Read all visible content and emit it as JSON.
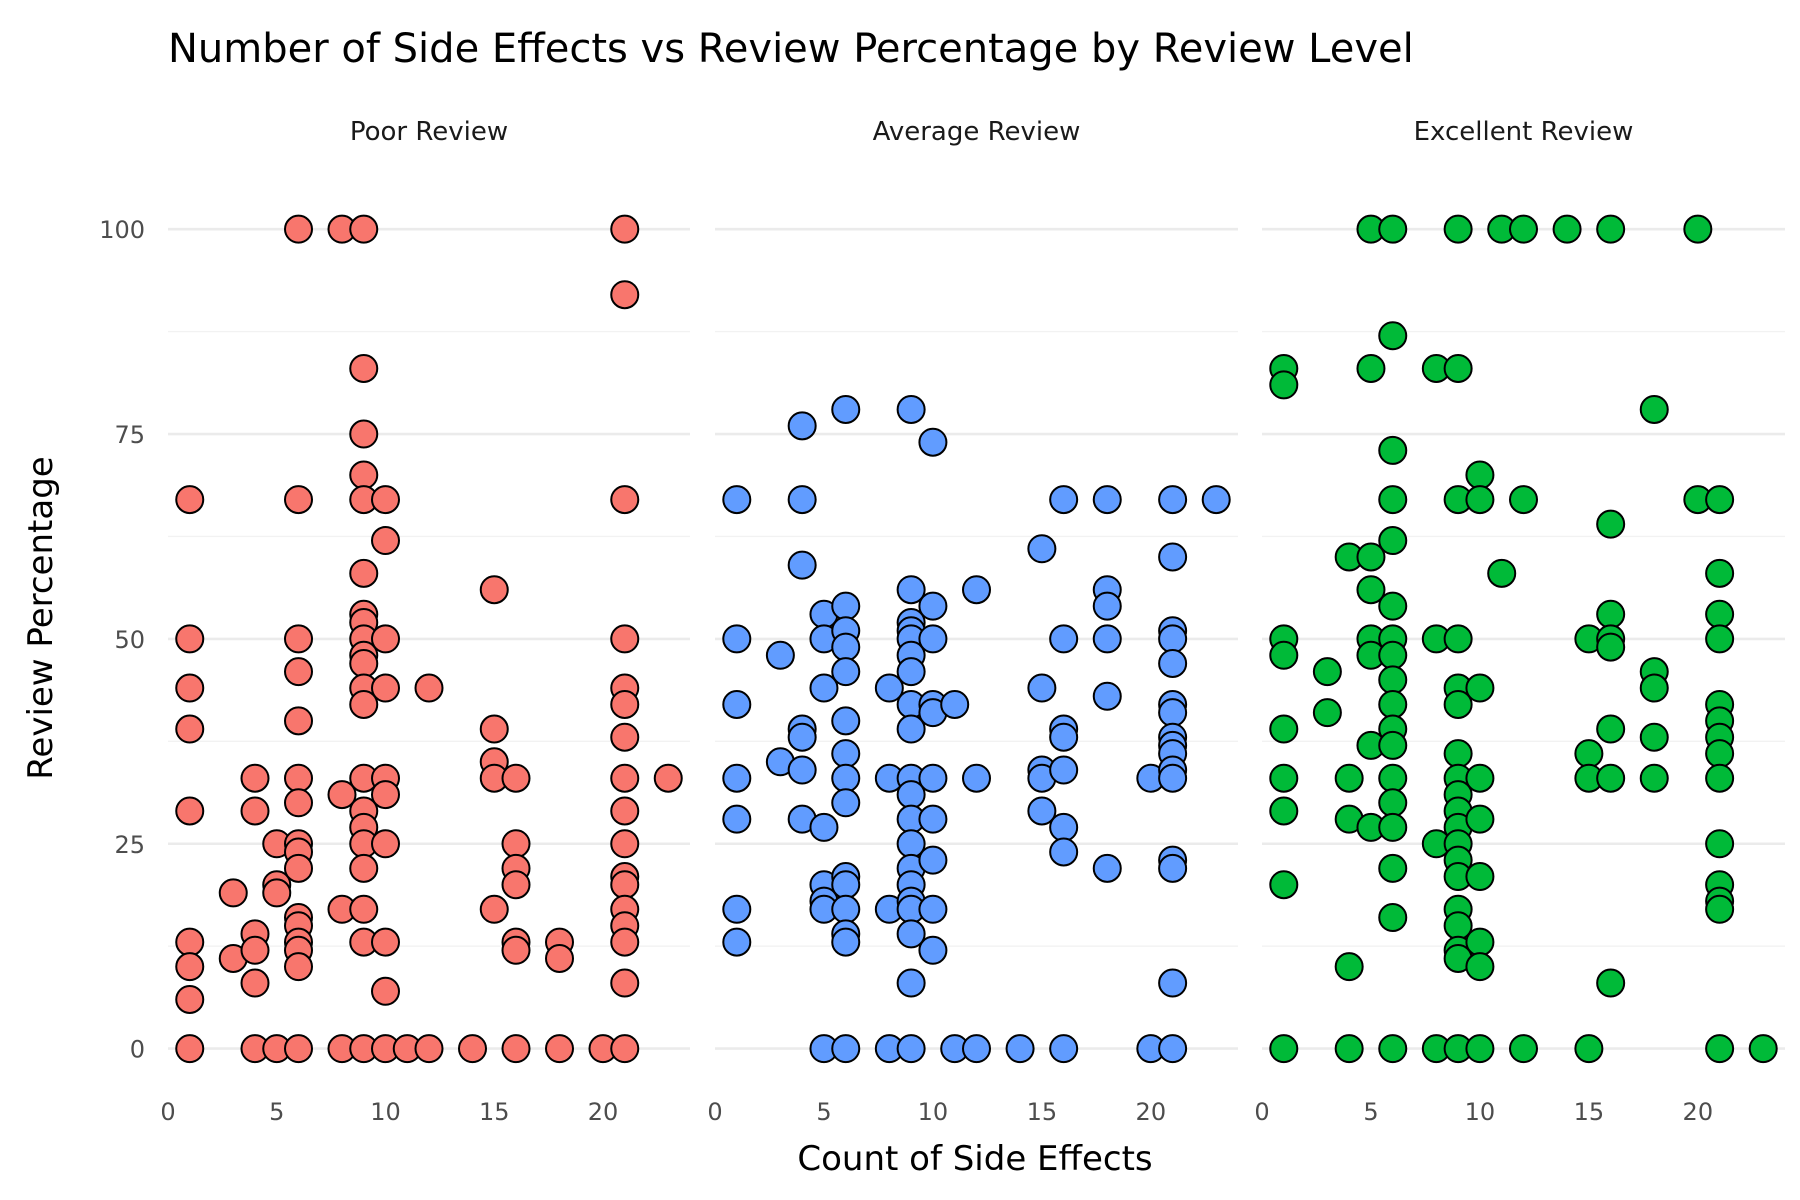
{
  "chart_data": {
    "type": "scatter",
    "title": "Number of Side Effects vs Review Percentage by Review Level",
    "xlabel": "Count of Side Effects",
    "ylabel": "Review Percentage",
    "xlim": [
      0,
      24
    ],
    "ylim": [
      -2,
      106
    ],
    "x_ticks": [
      "0",
      "5",
      "10",
      "15",
      "20"
    ],
    "y_ticks": [
      "0",
      "25",
      "50",
      "75",
      "100"
    ],
    "grid": true,
    "legend": "none",
    "series": [
      {
        "name": "Poor Review",
        "color": "#F8766D",
        "points": [
          [
            1,
            67
          ],
          [
            1,
            50
          ],
          [
            1,
            44
          ],
          [
            1,
            39
          ],
          [
            1,
            29
          ],
          [
            1,
            13
          ],
          [
            1,
            10
          ],
          [
            1,
            6
          ],
          [
            1,
            0
          ],
          [
            3,
            19
          ],
          [
            3,
            11
          ],
          [
            4,
            33
          ],
          [
            4,
            29
          ],
          [
            4,
            14
          ],
          [
            4,
            12
          ],
          [
            4,
            8
          ],
          [
            4,
            0
          ],
          [
            5,
            25
          ],
          [
            5,
            20
          ],
          [
            5,
            19
          ],
          [
            5,
            0
          ],
          [
            6,
            100
          ],
          [
            6,
            67
          ],
          [
            6,
            50
          ],
          [
            6,
            46
          ],
          [
            6,
            40
          ],
          [
            6,
            33
          ],
          [
            6,
            30
          ],
          [
            6,
            25
          ],
          [
            6,
            24
          ],
          [
            6,
            22
          ],
          [
            6,
            16
          ],
          [
            6,
            15
          ],
          [
            6,
            13
          ],
          [
            6,
            12
          ],
          [
            6,
            10
          ],
          [
            6,
            0
          ],
          [
            8,
            100
          ],
          [
            8,
            31
          ],
          [
            8,
            17
          ],
          [
            8,
            0
          ],
          [
            9,
            100
          ],
          [
            9,
            83
          ],
          [
            9,
            75
          ],
          [
            9,
            70
          ],
          [
            9,
            67
          ],
          [
            9,
            58
          ],
          [
            9,
            53
          ],
          [
            9,
            52
          ],
          [
            9,
            50
          ],
          [
            9,
            48
          ],
          [
            9,
            47
          ],
          [
            9,
            44
          ],
          [
            9,
            42
          ],
          [
            9,
            33
          ],
          [
            9,
            29
          ],
          [
            9,
            27
          ],
          [
            9,
            25
          ],
          [
            9,
            22
          ],
          [
            9,
            17
          ],
          [
            9,
            13
          ],
          [
            9,
            0
          ],
          [
            10,
            67
          ],
          [
            10,
            62
          ],
          [
            10,
            50
          ],
          [
            10,
            44
          ],
          [
            10,
            33
          ],
          [
            10,
            31
          ],
          [
            10,
            25
          ],
          [
            10,
            13
          ],
          [
            10,
            7
          ],
          [
            10,
            0
          ],
          [
            11,
            0
          ],
          [
            12,
            44
          ],
          [
            12,
            0
          ],
          [
            14,
            0
          ],
          [
            15,
            56
          ],
          [
            15,
            39
          ],
          [
            15,
            35
          ],
          [
            15,
            33
          ],
          [
            15,
            17
          ],
          [
            16,
            33
          ],
          [
            16,
            25
          ],
          [
            16,
            22
          ],
          [
            16,
            20
          ],
          [
            16,
            13
          ],
          [
            16,
            12
          ],
          [
            16,
            0
          ],
          [
            18,
            13
          ],
          [
            18,
            11
          ],
          [
            18,
            0
          ],
          [
            20,
            0
          ],
          [
            21,
            100
          ],
          [
            21,
            92
          ],
          [
            21,
            67
          ],
          [
            21,
            50
          ],
          [
            21,
            44
          ],
          [
            21,
            42
          ],
          [
            21,
            38
          ],
          [
            21,
            33
          ],
          [
            21,
            29
          ],
          [
            21,
            25
          ],
          [
            21,
            21
          ],
          [
            21,
            20
          ],
          [
            21,
            17
          ],
          [
            21,
            15
          ],
          [
            21,
            13
          ],
          [
            21,
            8
          ],
          [
            21,
            0
          ],
          [
            23,
            33
          ]
        ]
      },
      {
        "name": "Average Review",
        "color": "#619CFF",
        "points": [
          [
            1,
            67
          ],
          [
            1,
            50
          ],
          [
            1,
            42
          ],
          [
            1,
            33
          ],
          [
            1,
            28
          ],
          [
            1,
            17
          ],
          [
            1,
            13
          ],
          [
            3,
            48
          ],
          [
            3,
            35
          ],
          [
            4,
            76
          ],
          [
            4,
            67
          ],
          [
            4,
            59
          ],
          [
            4,
            39
          ],
          [
            4,
            38
          ],
          [
            4,
            34
          ],
          [
            4,
            28
          ],
          [
            5,
            53
          ],
          [
            5,
            50
          ],
          [
            5,
            44
          ],
          [
            5,
            27
          ],
          [
            5,
            20
          ],
          [
            5,
            18
          ],
          [
            5,
            17
          ],
          [
            5,
            0
          ],
          [
            6,
            78
          ],
          [
            6,
            54
          ],
          [
            6,
            51
          ],
          [
            6,
            49
          ],
          [
            6,
            46
          ],
          [
            6,
            40
          ],
          [
            6,
            36
          ],
          [
            6,
            33
          ],
          [
            6,
            30
          ],
          [
            6,
            21
          ],
          [
            6,
            20
          ],
          [
            6,
            17
          ],
          [
            6,
            14
          ],
          [
            6,
            13
          ],
          [
            6,
            0
          ],
          [
            8,
            44
          ],
          [
            8,
            33
          ],
          [
            8,
            17
          ],
          [
            8,
            0
          ],
          [
            9,
            78
          ],
          [
            9,
            56
          ],
          [
            9,
            52
          ],
          [
            9,
            51
          ],
          [
            9,
            50
          ],
          [
            9,
            48
          ],
          [
            9,
            46
          ],
          [
            9,
            42
          ],
          [
            9,
            39
          ],
          [
            9,
            33
          ],
          [
            9,
            31
          ],
          [
            9,
            28
          ],
          [
            9,
            25
          ],
          [
            9,
            22
          ],
          [
            9,
            20
          ],
          [
            9,
            18
          ],
          [
            9,
            17
          ],
          [
            9,
            14
          ],
          [
            9,
            8
          ],
          [
            9,
            0
          ],
          [
            10,
            74
          ],
          [
            10,
            54
          ],
          [
            10,
            50
          ],
          [
            10,
            42
          ],
          [
            10,
            41
          ],
          [
            10,
            33
          ],
          [
            10,
            28
          ],
          [
            10,
            23
          ],
          [
            10,
            17
          ],
          [
            10,
            12
          ],
          [
            11,
            42
          ],
          [
            11,
            0
          ],
          [
            12,
            56
          ],
          [
            12,
            33
          ],
          [
            12,
            0
          ],
          [
            14,
            0
          ],
          [
            15,
            61
          ],
          [
            15,
            44
          ],
          [
            15,
            34
          ],
          [
            15,
            33
          ],
          [
            15,
            29
          ],
          [
            16,
            67
          ],
          [
            16,
            50
          ],
          [
            16,
            39
          ],
          [
            16,
            38
          ],
          [
            16,
            34
          ],
          [
            16,
            27
          ],
          [
            16,
            24
          ],
          [
            16,
            0
          ],
          [
            18,
            67
          ],
          [
            18,
            56
          ],
          [
            18,
            54
          ],
          [
            18,
            50
          ],
          [
            18,
            43
          ],
          [
            18,
            22
          ],
          [
            20,
            33
          ],
          [
            20,
            0
          ],
          [
            21,
            67
          ],
          [
            21,
            60
          ],
          [
            21,
            51
          ],
          [
            21,
            50
          ],
          [
            21,
            47
          ],
          [
            21,
            42
          ],
          [
            21,
            41
          ],
          [
            21,
            38
          ],
          [
            21,
            37
          ],
          [
            21,
            36
          ],
          [
            21,
            34
          ],
          [
            21,
            33
          ],
          [
            21,
            23
          ],
          [
            21,
            22
          ],
          [
            21,
            8
          ],
          [
            21,
            0
          ],
          [
            23,
            67
          ]
        ]
      },
      {
        "name": "Excellent Review",
        "color": "#00BA38",
        "points": [
          [
            1,
            83
          ],
          [
            1,
            81
          ],
          [
            1,
            50
          ],
          [
            1,
            48
          ],
          [
            1,
            39
          ],
          [
            1,
            33
          ],
          [
            1,
            29
          ],
          [
            1,
            20
          ],
          [
            1,
            0
          ],
          [
            3,
            46
          ],
          [
            3,
            41
          ],
          [
            4,
            60
          ],
          [
            4,
            33
          ],
          [
            4,
            28
          ],
          [
            4,
            10
          ],
          [
            4,
            0
          ],
          [
            5,
            100
          ],
          [
            5,
            83
          ],
          [
            5,
            60
          ],
          [
            5,
            56
          ],
          [
            5,
            50
          ],
          [
            5,
            48
          ],
          [
            5,
            37
          ],
          [
            5,
            27
          ],
          [
            6,
            100
          ],
          [
            6,
            87
          ],
          [
            6,
            73
          ],
          [
            6,
            67
          ],
          [
            6,
            62
          ],
          [
            6,
            54
          ],
          [
            6,
            50
          ],
          [
            6,
            48
          ],
          [
            6,
            45
          ],
          [
            6,
            42
          ],
          [
            6,
            39
          ],
          [
            6,
            37
          ],
          [
            6,
            33
          ],
          [
            6,
            30
          ],
          [
            6,
            27
          ],
          [
            6,
            22
          ],
          [
            6,
            16
          ],
          [
            6,
            0
          ],
          [
            8,
            83
          ],
          [
            8,
            50
          ],
          [
            8,
            25
          ],
          [
            8,
            0
          ],
          [
            9,
            100
          ],
          [
            9,
            83
          ],
          [
            9,
            67
          ],
          [
            9,
            50
          ],
          [
            9,
            44
          ],
          [
            9,
            42
          ],
          [
            9,
            36
          ],
          [
            9,
            33
          ],
          [
            9,
            31
          ],
          [
            9,
            29
          ],
          [
            9,
            27
          ],
          [
            9,
            25
          ],
          [
            9,
            23
          ],
          [
            9,
            21
          ],
          [
            9,
            17
          ],
          [
            9,
            15
          ],
          [
            9,
            12
          ],
          [
            9,
            11
          ],
          [
            9,
            0
          ],
          [
            10,
            70
          ],
          [
            10,
            67
          ],
          [
            10,
            44
          ],
          [
            10,
            33
          ],
          [
            10,
            28
          ],
          [
            10,
            21
          ],
          [
            10,
            13
          ],
          [
            10,
            10
          ],
          [
            10,
            0
          ],
          [
            11,
            100
          ],
          [
            11,
            58
          ],
          [
            12,
            100
          ],
          [
            12,
            67
          ],
          [
            12,
            0
          ],
          [
            14,
            100
          ],
          [
            15,
            50
          ],
          [
            15,
            36
          ],
          [
            15,
            33
          ],
          [
            15,
            0
          ],
          [
            16,
            100
          ],
          [
            16,
            64
          ],
          [
            16,
            53
          ],
          [
            16,
            50
          ],
          [
            16,
            49
          ],
          [
            16,
            39
          ],
          [
            16,
            33
          ],
          [
            16,
            8
          ],
          [
            18,
            78
          ],
          [
            18,
            46
          ],
          [
            18,
            44
          ],
          [
            18,
            38
          ],
          [
            18,
            33
          ],
          [
            20,
            100
          ],
          [
            20,
            67
          ],
          [
            21,
            67
          ],
          [
            21,
            58
          ],
          [
            21,
            53
          ],
          [
            21,
            50
          ],
          [
            21,
            42
          ],
          [
            21,
            40
          ],
          [
            21,
            38
          ],
          [
            21,
            36
          ],
          [
            21,
            33
          ],
          [
            21,
            25
          ],
          [
            21,
            20
          ],
          [
            21,
            18
          ],
          [
            21,
            17
          ],
          [
            21,
            0
          ],
          [
            23,
            0
          ]
        ]
      }
    ]
  }
}
